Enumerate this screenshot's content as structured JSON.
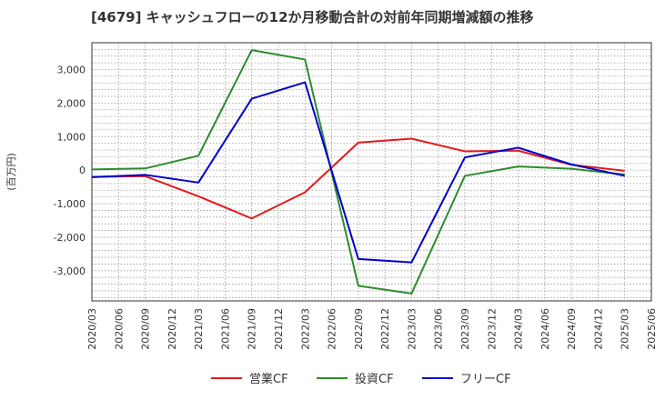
{
  "chart_data": {
    "type": "line",
    "title": "[4679]  キャッシュフローの12か月移動合計の対前年同期増減額の推移",
    "ylabel": "(百万円)",
    "xlabel": "",
    "ylim": [
      -3900,
      3800
    ],
    "yticks": [
      3000,
      2000,
      1000,
      0,
      -1000,
      -2000,
      -3000
    ],
    "ytick_labels": [
      "3,000",
      "2,000",
      "1,000",
      "0",
      "-1,000",
      "-2,000",
      "-3,000"
    ],
    "categories": [
      "2020/03",
      "2020/06",
      "2020/09",
      "2020/12",
      "2021/03",
      "2021/06",
      "2021/09",
      "2021/12",
      "2022/03",
      "2022/06",
      "2022/09",
      "2022/12",
      "2023/03",
      "2023/06",
      "2023/09",
      "2023/12",
      "2024/03",
      "2024/06",
      "2024/09",
      "2024/12",
      "2025/03",
      "2025/06"
    ],
    "grid": true,
    "legend_position": "bottom",
    "series": [
      {
        "name": "営業CF",
        "color": "#e31a1c",
        "points": [
          {
            "x": "2020/03",
            "y": -200
          },
          {
            "x": "2020/09",
            "y": -180
          },
          {
            "x": "2021/03",
            "y": -780
          },
          {
            "x": "2021/09",
            "y": -1440
          },
          {
            "x": "2022/03",
            "y": -660
          },
          {
            "x": "2022/09",
            "y": 820
          },
          {
            "x": "2023/03",
            "y": 940
          },
          {
            "x": "2023/09",
            "y": 560
          },
          {
            "x": "2024/03",
            "y": 580
          },
          {
            "x": "2024/09",
            "y": 160
          },
          {
            "x": "2025/03",
            "y": -20
          }
        ]
      },
      {
        "name": "投資CF",
        "color": "#2e8b2e",
        "points": [
          {
            "x": "2020/03",
            "y": 20
          },
          {
            "x": "2020/09",
            "y": 50
          },
          {
            "x": "2021/03",
            "y": 430
          },
          {
            "x": "2021/09",
            "y": 3580
          },
          {
            "x": "2022/03",
            "y": 3300
          },
          {
            "x": "2022/09",
            "y": -3450
          },
          {
            "x": "2023/03",
            "y": -3680
          },
          {
            "x": "2023/09",
            "y": -170
          },
          {
            "x": "2024/03",
            "y": 110
          },
          {
            "x": "2024/09",
            "y": 40
          },
          {
            "x": "2025/03",
            "y": -130
          }
        ]
      },
      {
        "name": "フリーCF",
        "color": "#0000cc",
        "points": [
          {
            "x": "2020/03",
            "y": -210
          },
          {
            "x": "2020/09",
            "y": -140
          },
          {
            "x": "2021/03",
            "y": -370
          },
          {
            "x": "2021/09",
            "y": 2130
          },
          {
            "x": "2022/03",
            "y": 2620
          },
          {
            "x": "2022/09",
            "y": -2650
          },
          {
            "x": "2023/03",
            "y": -2750
          },
          {
            "x": "2023/09",
            "y": 380
          },
          {
            "x": "2024/03",
            "y": 670
          },
          {
            "x": "2024/09",
            "y": 170
          },
          {
            "x": "2025/03",
            "y": -170
          }
        ]
      }
    ]
  }
}
